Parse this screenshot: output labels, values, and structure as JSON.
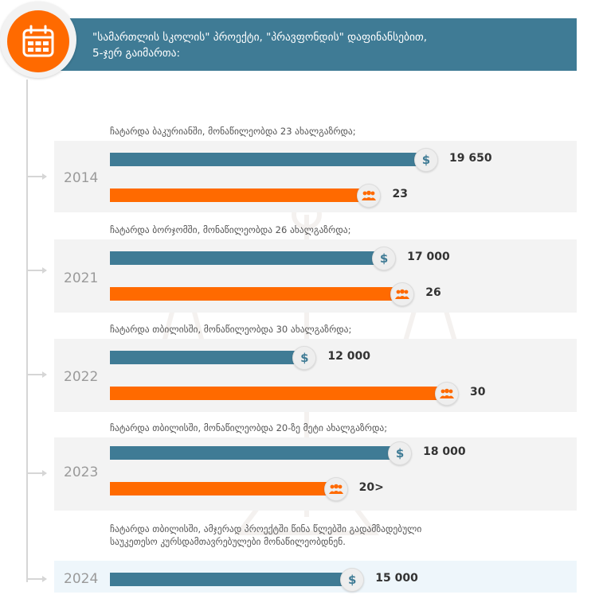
{
  "header": {
    "title": "\"სამართლის სკოლის\" პროექტი, \"პრავფონდის\" დაფინანსებით,\n5-ჯერ გაიმართა:",
    "icon": "calendar-icon"
  },
  "colors": {
    "teal": "#3f7b95",
    "orange": "#ff6a00",
    "band": "#f3f3f3"
  },
  "chart_data": {
    "type": "bar",
    "orientation": "horizontal",
    "title": "\"სამართლის სკოლის\" პროექტი, \"პრავფონდის\" დაფინანსებით, 5-ჯერ გაიმართა:",
    "categories": [
      "2014",
      "2021",
      "2022",
      "2023",
      "2024"
    ],
    "series": [
      {
        "name": "funding",
        "icon": "dollar-icon",
        "values": [
          19650,
          17000,
          12000,
          18000,
          15000
        ],
        "labels": [
          "19 650",
          "17 000",
          "12 000",
          "18 000",
          "15 000"
        ]
      },
      {
        "name": "participants",
        "icon": "people-icon",
        "values": [
          23,
          26,
          30,
          20,
          null
        ],
        "labels": [
          "23",
          "26",
          "30",
          "20>",
          ""
        ]
      }
    ],
    "annotations": [
      "ჩატარდა ბაკურიანში, მონაწილეობდა 23 ახალგაზრდა;",
      "ჩატარდა ბორჯომში, მონაწილეობდა 26 ახალგაზრდა;",
      "ჩატარდა თბილისში, მონაწილეობდა 30 ახალგაზრდა;",
      "ჩატარდა თბილისში, მონაწილეობდა 20-ზე მეტი ახალგაზრდა;",
      "ჩატარდა თბილისში, ამჯერად პროექტში წინა წლებში გადამზადებული\nსაუკეთესო კურსდამთავრებულები მონაწილეობდნენ."
    ]
  }
}
